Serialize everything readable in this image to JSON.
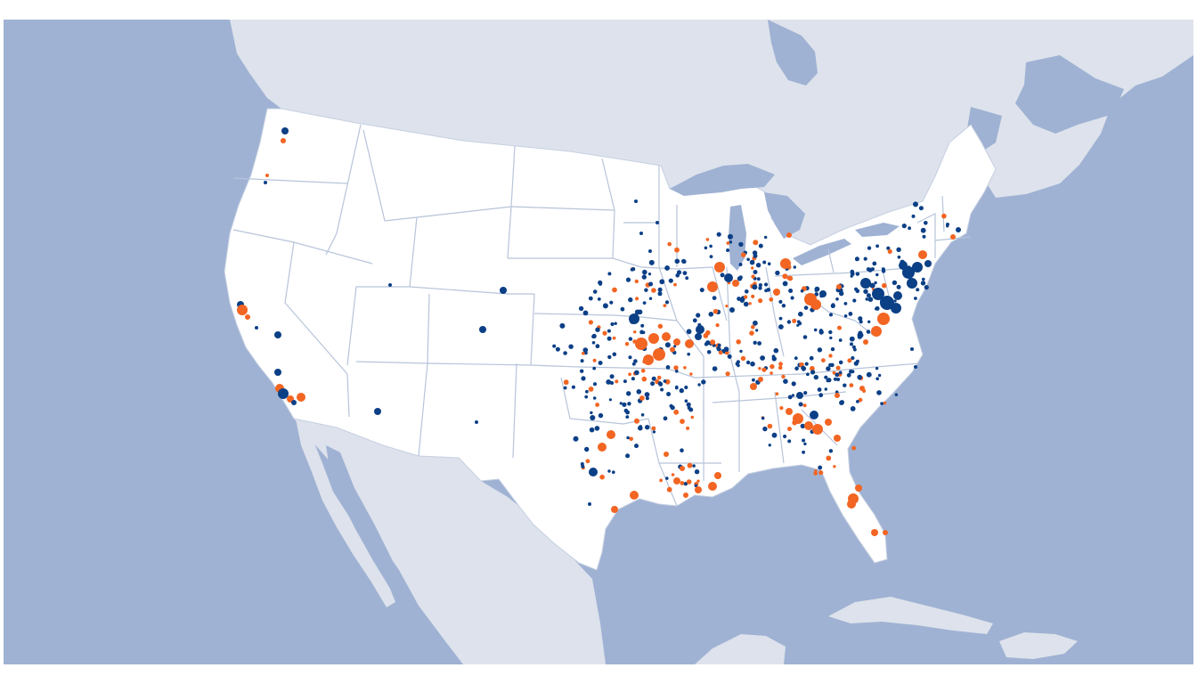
{
  "map": {
    "colors": {
      "ocean": "#9fb2d3",
      "foreign_land": "#dde2ec",
      "us_land": "#ffffff",
      "state_border": "#b7c4da",
      "series_a": "#0b3f86",
      "series_b": "#f26522"
    },
    "series": [
      {
        "key": "a",
        "color": "#0b3f86"
      },
      {
        "key": "b",
        "color": "#f26522"
      }
    ]
  }
}
